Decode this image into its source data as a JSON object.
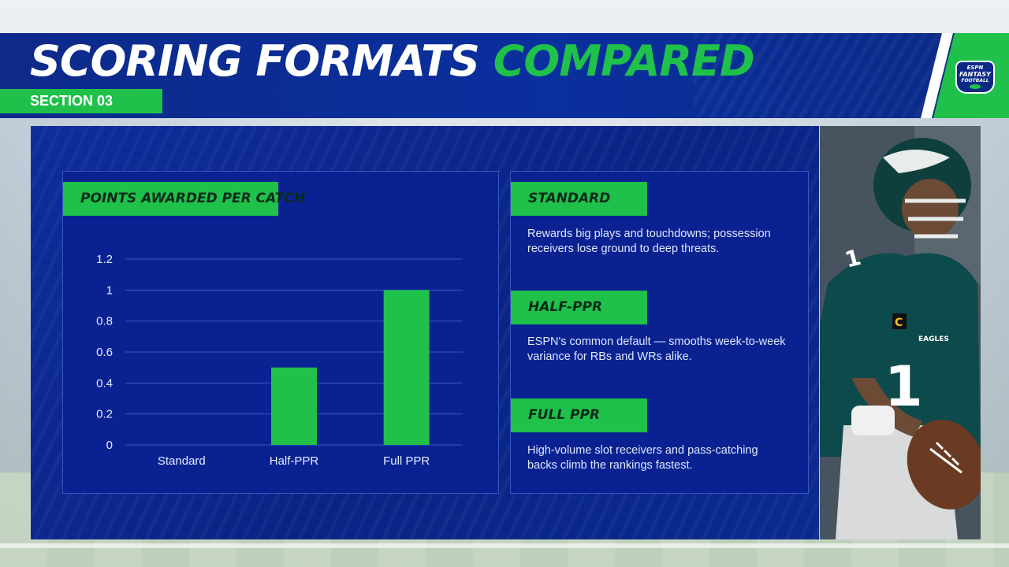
{
  "header": {
    "title_main": "SCORING FORMATS",
    "title_accent": "COMPARED",
    "section": "SECTION 03",
    "logo": {
      "line1": "ESPN",
      "line2": "FANTASY",
      "line3": "FOOTBALL"
    }
  },
  "chart_card": {
    "label": "POINTS AWARDED PER CATCH"
  },
  "chart_data": {
    "type": "bar",
    "title": "POINTS AWARDED PER CATCH",
    "categories": [
      "Standard",
      "Half-PPR",
      "Full PPR"
    ],
    "values": [
      0,
      0.5,
      1
    ],
    "ylim": [
      0,
      1.2
    ],
    "yticks": [
      "0",
      "0.2",
      "0.4",
      "0.6",
      "0.8",
      "1",
      "1.2"
    ],
    "grid": true,
    "bar_color": "#1fc14a"
  },
  "formats": [
    {
      "label": "STANDARD",
      "description": "Rewards big plays and touchdowns; possession receivers lose ground to deep threats."
    },
    {
      "label": "HALF-PPR",
      "description": "ESPN's common default — smooths week-to-week variance for RBs and WRs alike."
    },
    {
      "label": "FULL PPR",
      "description": "High-volume slot receivers and pass-catching backs climb the rankings fastest."
    }
  ],
  "player": {
    "jersey_number": "1",
    "team_wordmark": "EAGLES",
    "captain_patch": "C"
  },
  "colors": {
    "accent_green": "#1fc14a",
    "navy": "#0a2486",
    "panel": "#0a2291"
  }
}
